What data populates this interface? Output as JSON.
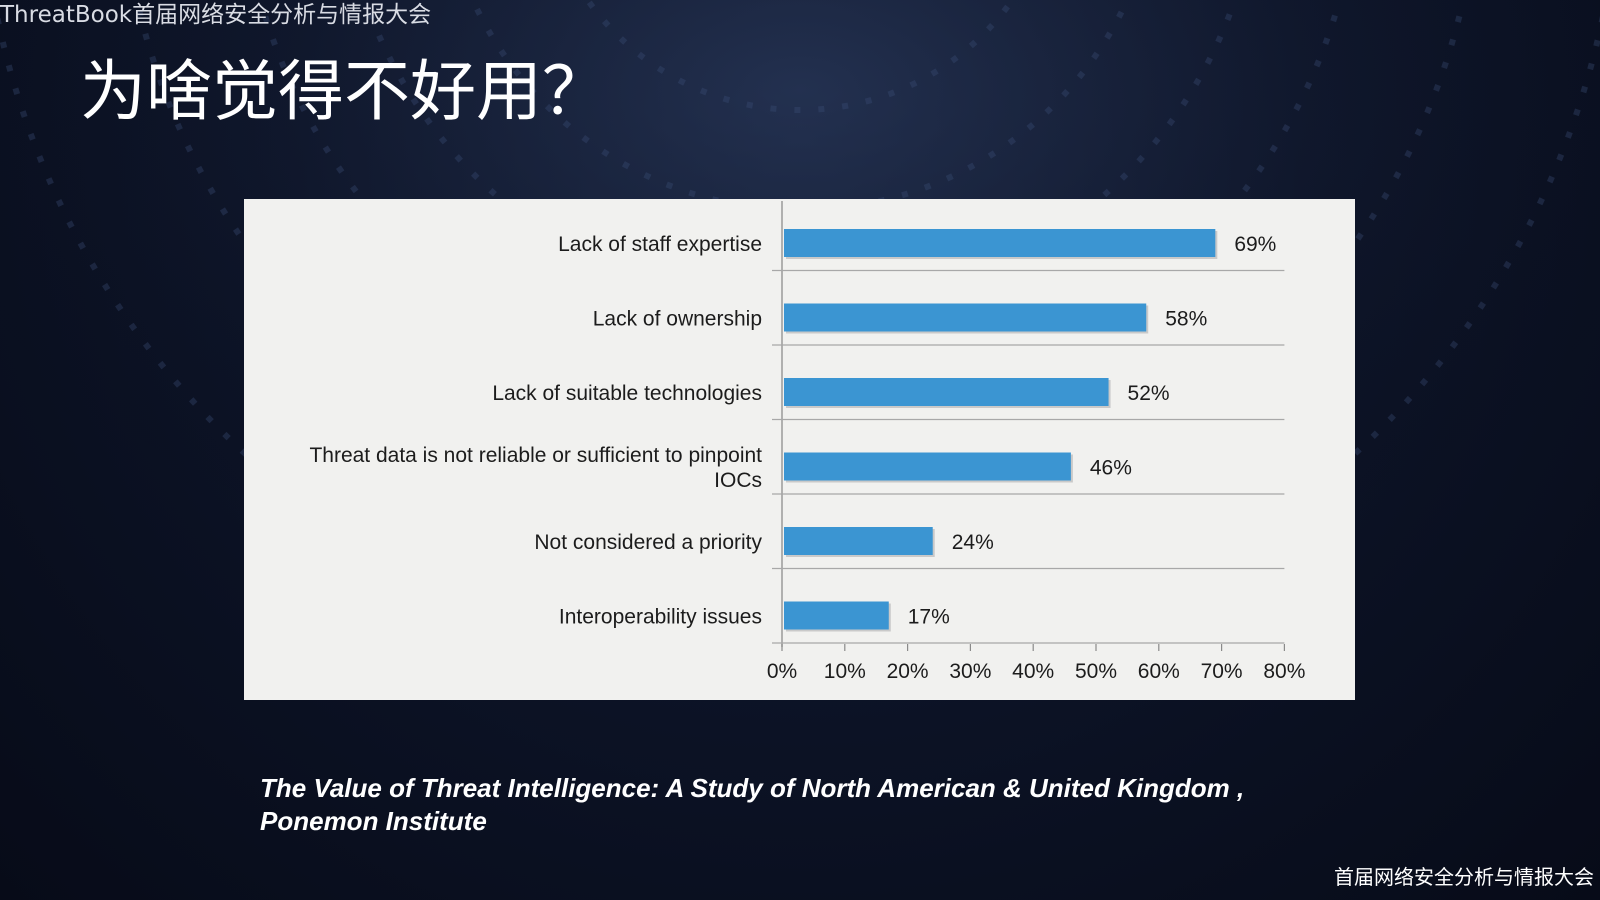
{
  "header": {
    "brand": "ThreatBook首届网络安全分析与情报大会",
    "title": "为啥觉得不好用？"
  },
  "chart_data": {
    "type": "bar",
    "orientation": "horizontal",
    "categories": [
      [
        "Lack of staff expertise"
      ],
      [
        "Lack of ownership"
      ],
      [
        "Lack of suitable technologies"
      ],
      [
        "Threat data is not reliable or sufficient to pinpoint",
        "IOCs"
      ],
      [
        "Not considered a priority"
      ],
      [
        "Interoperability issues"
      ]
    ],
    "values": [
      69,
      58,
      52,
      46,
      24,
      17
    ],
    "value_labels": [
      "69%",
      "58%",
      "52%",
      "46%",
      "24%",
      "17%"
    ],
    "xlim": [
      0,
      80
    ],
    "xticks": [
      0,
      10,
      20,
      30,
      40,
      50,
      60,
      70,
      80
    ],
    "xtick_labels": [
      "0%",
      "10%",
      "20%",
      "30%",
      "40%",
      "50%",
      "60%",
      "70%",
      "80%"
    ],
    "bar_color": "#3b95d2",
    "grid": "horizontal-separators",
    "title": "",
    "xlabel": "",
    "ylabel": ""
  },
  "source": {
    "line1": "The Value of Threat Intelligence: A Study of North American & United Kingdom ,",
    "line2": "Ponemon Institute"
  },
  "footer": {
    "brand": "首届网络安全分析与情报大会"
  }
}
